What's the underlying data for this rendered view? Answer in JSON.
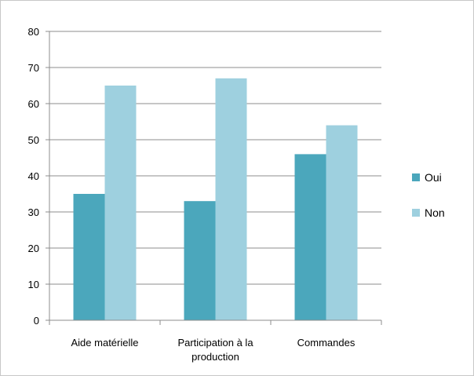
{
  "chart_data": {
    "type": "bar",
    "categories": [
      [
        "Aide matérielle"
      ],
      [
        "Participation à la",
        "production"
      ],
      [
        "Commandes"
      ]
    ],
    "series": [
      {
        "name": "Oui",
        "values": [
          35,
          33,
          46
        ],
        "color": "#4ba7bc"
      },
      {
        "name": "Non",
        "values": [
          65,
          67,
          54
        ],
        "color": "#9ed0df"
      }
    ],
    "ylim": [
      0,
      80
    ],
    "yticks": [
      0,
      10,
      20,
      30,
      40,
      50,
      60,
      70,
      80
    ],
    "grid": true,
    "legend_position": "right",
    "title": "",
    "xlabel": "",
    "ylabel": ""
  }
}
